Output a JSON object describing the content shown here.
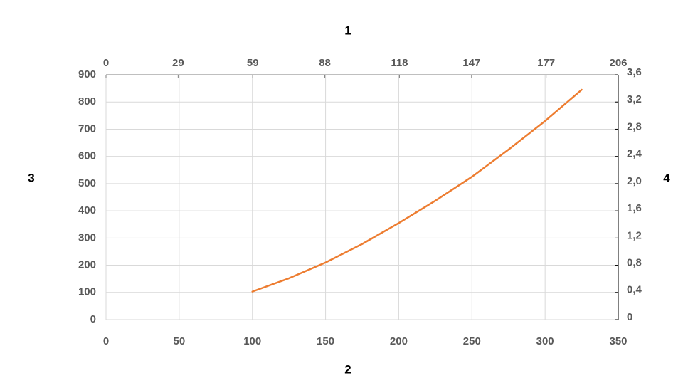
{
  "chart_data": {
    "type": "line",
    "xlabel": "2",
    "x2label": "1",
    "ylabel": "3",
    "y2label": "4",
    "x": [
      100,
      125,
      150,
      175,
      200,
      225,
      250,
      275,
      300,
      325
    ],
    "series": [
      {
        "color": "#ed7d31",
        "values": [
          103,
          152,
          210,
          278,
          355,
          437,
          525,
          625,
          730,
          845
        ]
      }
    ],
    "xlim": [
      0,
      350
    ],
    "xticks": [
      0,
      50,
      100,
      150,
      200,
      250,
      300,
      350
    ],
    "x2lim": [
      0,
      206
    ],
    "x2ticks": [
      0,
      29,
      59,
      88,
      118,
      147,
      177,
      206
    ],
    "ylim": [
      0,
      900
    ],
    "yticks": [
      0,
      100,
      200,
      300,
      400,
      500,
      600,
      700,
      800,
      900
    ],
    "y2lim": [
      0,
      3.6
    ],
    "y2ticks": [
      0,
      {
        "value": 0.4,
        "label": "0,4"
      },
      {
        "value": 0.8,
        "label": "0,8"
      },
      {
        "value": 1.2,
        "label": "1,2"
      },
      {
        "value": 1.6,
        "label": "1,6"
      },
      {
        "value": 2.0,
        "label": "2,0"
      },
      {
        "value": 2.4,
        "label": "2,4"
      },
      {
        "value": 2.8,
        "label": "2,8"
      },
      {
        "value": 3.2,
        "label": "3,2"
      },
      {
        "value": 3.6,
        "label": "3,6"
      }
    ],
    "grid": true
  }
}
